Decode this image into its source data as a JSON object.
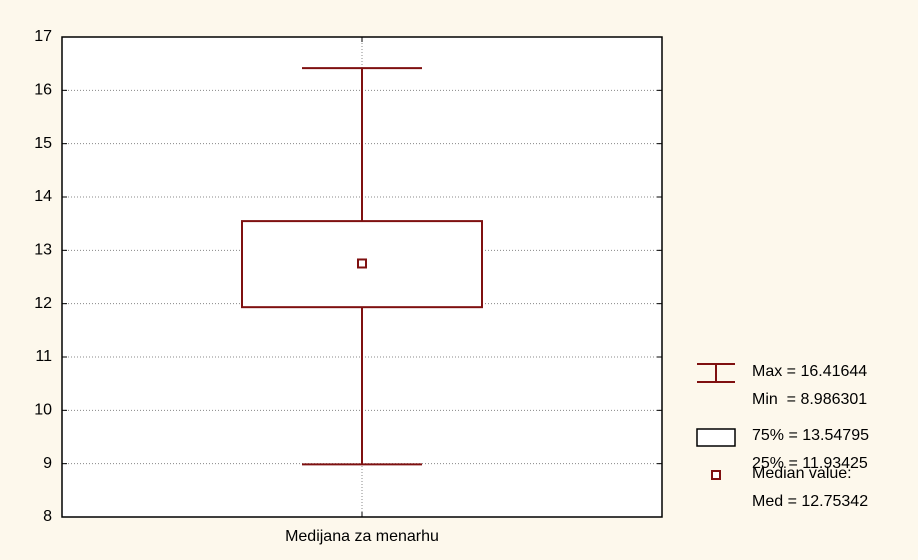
{
  "chart_data": {
    "type": "box",
    "categories": [
      "Medijana za menarhu"
    ],
    "min": [
      8.986301
    ],
    "q1": [
      11.93425
    ],
    "median": [
      12.75342
    ],
    "q3": [
      13.54795
    ],
    "max": [
      16.41644
    ],
    "color": "#7f1010",
    "ylim": [
      8,
      17
    ],
    "yticks": [
      8,
      9,
      10,
      11,
      12,
      13,
      14,
      15,
      16,
      17
    ],
    "grid": true,
    "legend": [
      "Max = 16.41644",
      "Min  = 8.986301",
      "75% = 13.54795",
      "25% = 11.93425",
      "Median value:",
      "Med = 12.75342"
    ]
  }
}
